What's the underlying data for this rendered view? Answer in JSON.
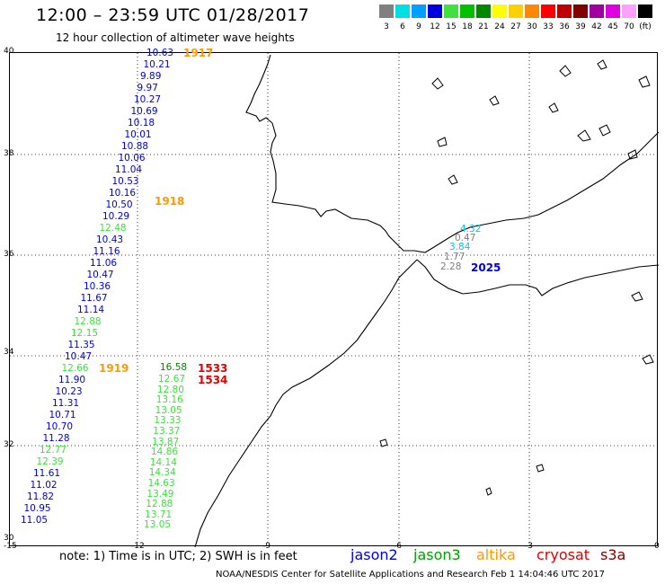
{
  "header": {
    "title": "12:00 – 23:59 UTC 01/28/2017",
    "subtitle": "12 hour collection of altimeter wave heights"
  },
  "colorbar": {
    "cells": [
      {
        "color": "#808080",
        "label": "3"
      },
      {
        "color": "#00e0e0",
        "label": "6"
      },
      {
        "color": "#00a0ff",
        "label": "9"
      },
      {
        "color": "#0000e0",
        "label": "12"
      },
      {
        "color": "#40e040",
        "label": "15"
      },
      {
        "color": "#00c000",
        "label": "18"
      },
      {
        "color": "#008800",
        "label": "21"
      },
      {
        "color": "#ffff00",
        "label": "24"
      },
      {
        "color": "#ffd000",
        "label": "27"
      },
      {
        "color": "#ff8800",
        "label": "30"
      },
      {
        "color": "#ff0000",
        "label": "33"
      },
      {
        "color": "#c00000",
        "label": "36"
      },
      {
        "color": "#800000",
        "label": "39"
      },
      {
        "color": "#a000a0",
        "label": "42"
      },
      {
        "color": "#e000e0",
        "label": "45"
      },
      {
        "color": "#ffa0ff",
        "label": "70"
      },
      {
        "color": "#000000",
        "label": "(ft)"
      }
    ]
  },
  "axes": {
    "lat_labels": [
      "40",
      "38",
      "36",
      "34",
      "32",
      "30"
    ],
    "lon_labels": [
      "-15",
      "-12",
      "-9",
      "-6",
      "-3",
      "0"
    ]
  },
  "tracks": [
    {
      "color": "#0000e0",
      "values": [
        "10.63",
        "10.21",
        "9.89",
        "9.97",
        "10.27",
        "10.69",
        "10.18",
        "10.01",
        "10.88",
        "10.06",
        "11.04",
        "10.53",
        "10.16",
        "10.50",
        "10.29"
      ]
    },
    {
      "color": "#40e040",
      "values": [
        "12.48"
      ]
    },
    {
      "color": "#0000e0",
      "values": [
        "10.43",
        "11.16",
        "11.06",
        "10.47",
        "10.36",
        "11.67",
        "11.14"
      ]
    },
    {
      "color": "#40e040",
      "values": [
        "12.88",
        "12.15"
      ]
    },
    {
      "color": "#0000e0",
      "values": [
        "11.35",
        "10.47"
      ]
    },
    {
      "color": "#40e040",
      "values": [
        "12.66"
      ]
    },
    {
      "color": "#0000e0",
      "values": [
        "11.90",
        "10.23",
        "11.31",
        "10.71",
        "10.70",
        "11.28"
      ]
    },
    {
      "color": "#40e040",
      "values": [
        "12.77",
        "12.39"
      ]
    },
    {
      "color": "#0000e0",
      "values": [
        "11.61",
        "11.02",
        "11.82",
        "10.95",
        "11.05"
      ]
    }
  ],
  "track_green": {
    "first": {
      "color": "#008800",
      "value": "16.58"
    },
    "values": [
      "12.67",
      "12.80",
      "13.16",
      "13.05",
      "13.33",
      "13.37",
      "13.87",
      "14.86",
      "14.14",
      "14.34",
      "14.63",
      "13.49",
      "12.88",
      "13.71",
      "13.05"
    ],
    "color": "#40e040"
  },
  "track_strait": [
    {
      "value": "4.32",
      "color": "#00c8e0"
    },
    {
      "value": "0.47",
      "color": "#808080"
    },
    {
      "value": "3.84",
      "color": "#00c8e0"
    },
    {
      "value": "1.77",
      "color": "#808080"
    },
    {
      "value": "2.28",
      "color": "#808080"
    }
  ],
  "times": [
    {
      "label": "1917",
      "color": "#ff9900"
    },
    {
      "label": "1918",
      "color": "#ff9900"
    },
    {
      "label": "1919",
      "color": "#ff9900"
    },
    {
      "label": "1533",
      "color": "#e00000"
    },
    {
      "label": "1534",
      "color": "#e00000"
    },
    {
      "label": "2025",
      "color": "#0000e0"
    }
  ],
  "note": "note:  1) Time is in UTC; 2) SWH is in feet",
  "legend": [
    {
      "label": "jason2",
      "color": "#0000e0"
    },
    {
      "label": "jason3",
      "color": "#00a000"
    },
    {
      "label": "altika",
      "color": "#ff9900"
    },
    {
      "label": "cryosat",
      "color": "#e00000"
    },
    {
      "label": "s3a",
      "color": "#800000"
    }
  ],
  "credit": "NOAA/NESDIS Center for Satellite Applications and Research    Feb  1 14:04:46 UTC 2017"
}
